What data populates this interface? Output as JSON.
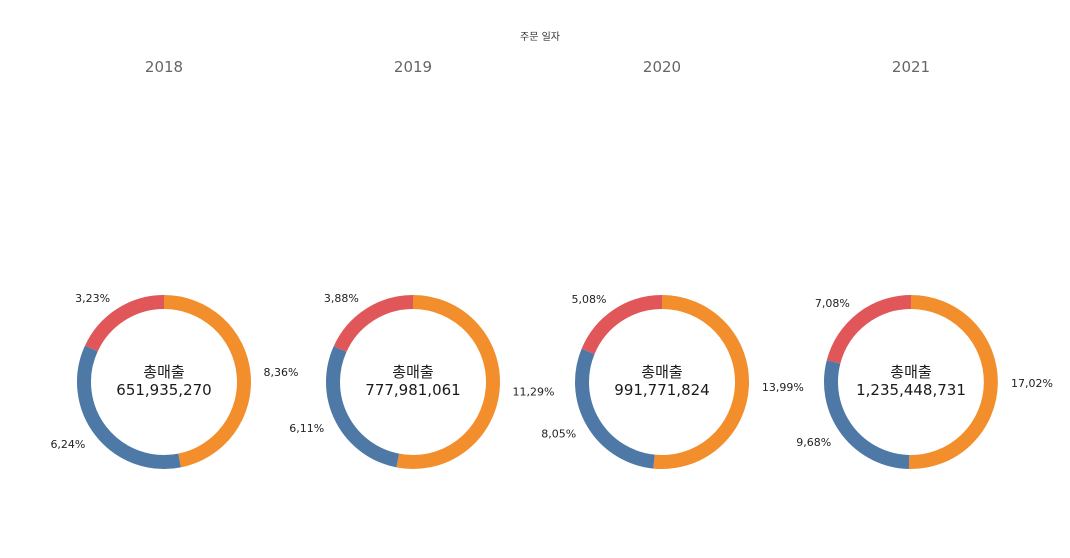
{
  "chart_data": {
    "type": "pie",
    "style": "donut",
    "axis_title": "주문 일자",
    "center_title": "총매출",
    "series_colors": [
      "#f28e2b",
      "#4e79a7",
      "#e15759"
    ],
    "panels": [
      {
        "year": "2018",
        "total": "651,935,270",
        "slices": [
          {
            "value": 8.36,
            "label": "8,36%"
          },
          {
            "value": 6.24,
            "label": "6,24%"
          },
          {
            "value": 3.23,
            "label": "3,23%"
          }
        ]
      },
      {
        "year": "2019",
        "total": "777,981,061",
        "slices": [
          {
            "value": 11.29,
            "label": "11,29%"
          },
          {
            "value": 6.11,
            "label": "6,11%"
          },
          {
            "value": 3.88,
            "label": "3,88%"
          }
        ]
      },
      {
        "year": "2020",
        "total": "991,771,824",
        "slices": [
          {
            "value": 13.99,
            "label": "13,99%"
          },
          {
            "value": 8.05,
            "label": "8,05%"
          },
          {
            "value": 5.08,
            "label": "5,08%"
          }
        ]
      },
      {
        "year": "2021",
        "total": "1,235,448,731",
        "slices": [
          {
            "value": 17.02,
            "label": "17,02%"
          },
          {
            "value": 9.68,
            "label": "9,68%"
          },
          {
            "value": 7.08,
            "label": "7,08%"
          }
        ]
      }
    ]
  }
}
